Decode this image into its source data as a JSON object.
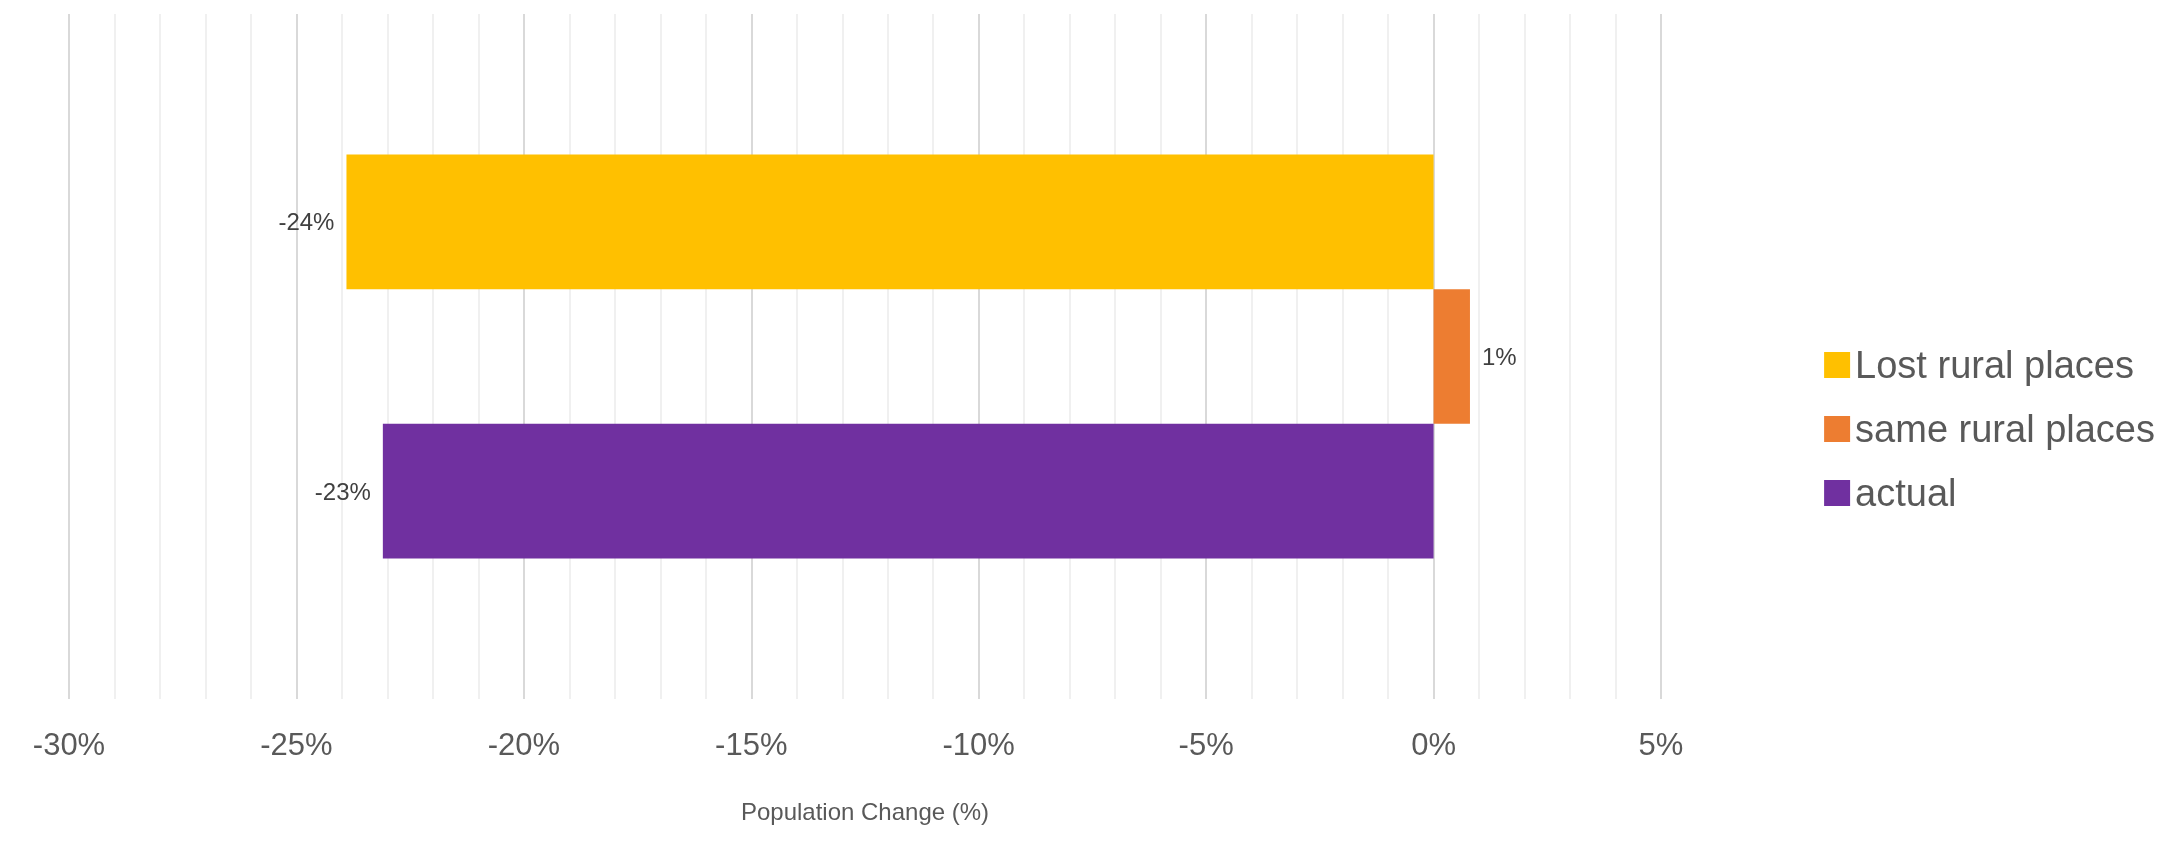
{
  "chart_data": {
    "type": "bar",
    "orientation": "horizontal",
    "xlabel": "Population Change (%)",
    "categories": [
      null
    ],
    "series": [
      {
        "name": "Lost rural places",
        "color": "#ffc000",
        "values": [
          -23.9
        ],
        "value_labels": [
          "-24%"
        ]
      },
      {
        "name": "same rural places",
        "color": "#ed7d31",
        "values": [
          0.8
        ],
        "value_labels": [
          "1%"
        ]
      },
      {
        "name": "actual",
        "color": "#7030a0",
        "values": [
          -23.1
        ],
        "value_labels": [
          "-23%"
        ]
      }
    ],
    "xlim": [
      -30,
      5
    ],
    "xticks": [
      {
        "value": -30,
        "label": "-30%"
      },
      {
        "value": -29,
        "label": null
      },
      {
        "value": -28,
        "label": null
      },
      {
        "value": -27,
        "label": null
      },
      {
        "value": -26,
        "label": null
      },
      {
        "value": -25,
        "label": "-25%"
      },
      {
        "value": -24,
        "label": null
      },
      {
        "value": -23,
        "label": null
      },
      {
        "value": -22,
        "label": null
      },
      {
        "value": -21,
        "label": null
      },
      {
        "value": -20,
        "label": "-20%"
      },
      {
        "value": -19,
        "label": null
      },
      {
        "value": -18,
        "label": null
      },
      {
        "value": -17,
        "label": null
      },
      {
        "value": -16,
        "label": null
      },
      {
        "value": -15,
        "label": "-15%"
      },
      {
        "value": -14,
        "label": null
      },
      {
        "value": -13,
        "label": null
      },
      {
        "value": -12,
        "label": null
      },
      {
        "value": -11,
        "label": null
      },
      {
        "value": -10,
        "label": "-10%"
      },
      {
        "value": -9,
        "label": null
      },
      {
        "value": -8,
        "label": null
      },
      {
        "value": -7,
        "label": null
      },
      {
        "value": -6,
        "label": null
      },
      {
        "value": -5,
        "label": "-5%"
      },
      {
        "value": -4,
        "label": null
      },
      {
        "value": -3,
        "label": null
      },
      {
        "value": -2,
        "label": null
      },
      {
        "value": -1,
        "label": null
      },
      {
        "value": 0,
        "label": "0%"
      },
      {
        "value": 1,
        "label": null
      },
      {
        "value": 2,
        "label": null
      },
      {
        "value": 3,
        "label": null
      },
      {
        "value": 4,
        "label": null
      },
      {
        "value": 5,
        "label": "5%"
      }
    ],
    "grid": true,
    "legend": "right"
  }
}
